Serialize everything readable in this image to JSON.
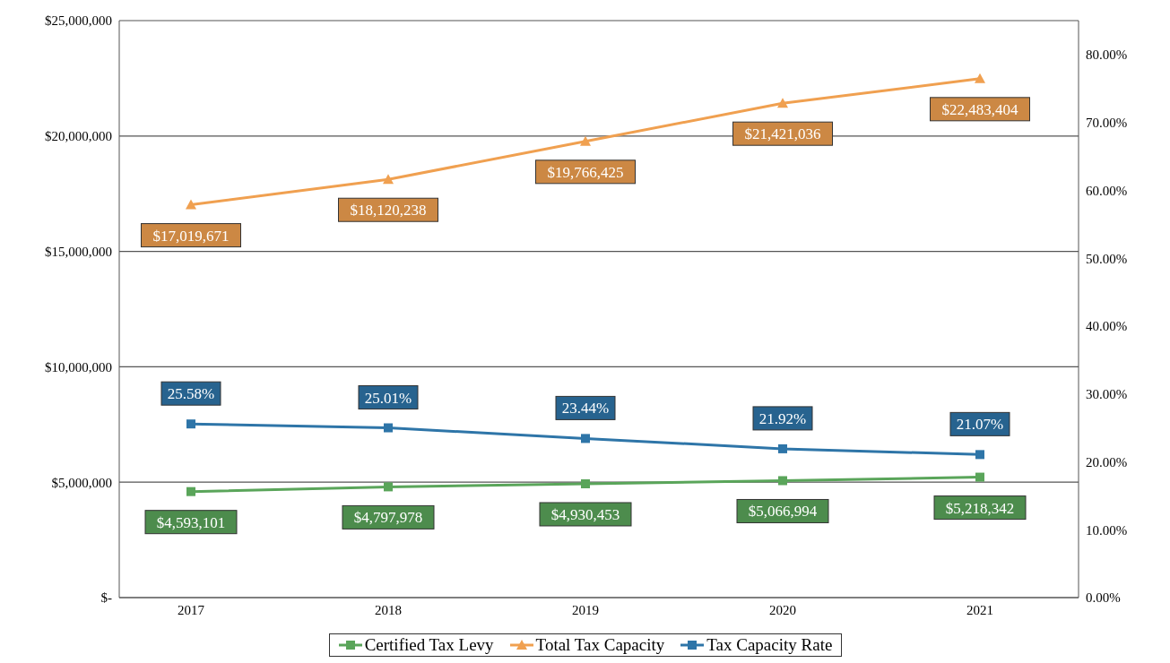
{
  "chart_data": {
    "type": "line",
    "categories": [
      "2017",
      "2018",
      "2019",
      "2020",
      "2021"
    ],
    "series": [
      {
        "name": "Certified Tax Levy",
        "color": "#5aa55a",
        "marker": "square",
        "values": [
          4593101,
          4797978,
          4930453,
          5066994,
          5218342
        ],
        "value_labels": [
          "$4,593,101",
          "$4,797,978",
          "$4,930,453",
          "$5,066,994",
          "$5,218,342"
        ]
      },
      {
        "name": "Total Tax Capacity",
        "color": "#f0a050",
        "marker": "triangle",
        "values": [
          17019671,
          18120238,
          19766425,
          21421036,
          22483404
        ],
        "value_labels": [
          "$17,019,671",
          "$18,120,238",
          "$19,766,425",
          "$21,421,036",
          "$22,483,404"
        ]
      },
      {
        "name": "Tax Capacity Rate",
        "color": "#2e75a8",
        "marker": "square",
        "axis": "y2",
        "values": [
          25.58,
          25.01,
          23.44,
          21.92,
          21.07
        ],
        "value_labels": [
          "25.58%",
          "25.01%",
          "23.44%",
          "21.92%",
          "21.07%"
        ]
      }
    ],
    "ylim": [
      0,
      25000000
    ],
    "yticks": [
      {
        "value": 0,
        "label": "$-"
      },
      {
        "value": 5000000,
        "label": "$5,000,000"
      },
      {
        "value": 10000000,
        "label": "$10,000,000"
      },
      {
        "value": 15000000,
        "label": "$15,000,000"
      },
      {
        "value": 20000000,
        "label": "$20,000,000"
      },
      {
        "value": 25000000,
        "label": "$25,000,000"
      }
    ],
    "y2lim": [
      0,
      85
    ],
    "y2ticks": [
      {
        "value": 0,
        "label": "0.00%"
      },
      {
        "value": 10,
        "label": "10.00%"
      },
      {
        "value": 20,
        "label": "20.00%"
      },
      {
        "value": 30,
        "label": "30.00%"
      },
      {
        "value": 40,
        "label": "40.00%"
      },
      {
        "value": 50,
        "label": "50.00%"
      },
      {
        "value": 60,
        "label": "60.00%"
      },
      {
        "value": 70,
        "label": "70.00%"
      },
      {
        "value": 80,
        "label": "80.00%"
      }
    ],
    "grid": "y",
    "legend": "bottom",
    "line_style": "solid"
  }
}
